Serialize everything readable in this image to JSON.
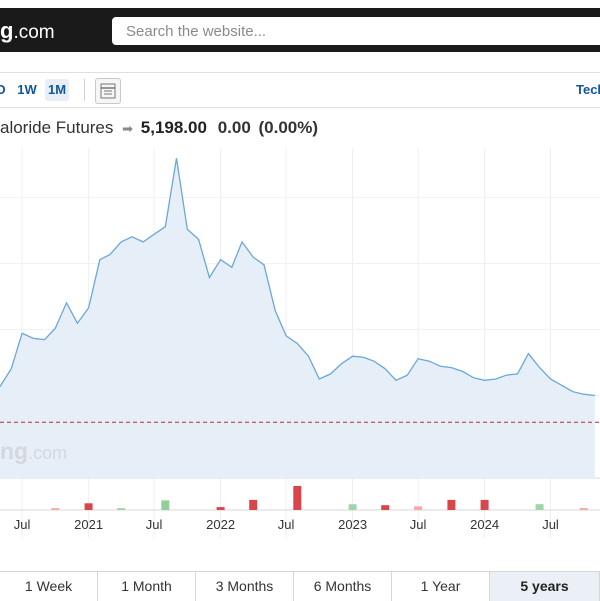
{
  "header": {
    "logo_bold": "g",
    "logo_suffix": ".com",
    "search_placeholder": "Search the website..."
  },
  "toolbar": {
    "timeframes": [
      {
        "label": "D",
        "active": false
      },
      {
        "label": "1W",
        "active": false
      },
      {
        "label": "1M",
        "active": true
      }
    ],
    "chart_type_icon": "candlestick-chart-icon",
    "technical_label": "Tech"
  },
  "quote": {
    "name": "aloride Futures",
    "arrow_icon": "right-arrow-icon",
    "price": "5,198.00",
    "change": "0.00",
    "change_pct": "(0.00%)"
  },
  "watermark": {
    "bold": "ng",
    "suffix": ".com"
  },
  "chart_data": {
    "type": "area",
    "x_axis": {
      "tick_labels": [
        "Jul",
        "2021",
        "Jul",
        "2022",
        "Jul",
        "2023",
        "Jul",
        "2024",
        "Jul"
      ],
      "tick_dates": [
        "2020-07-01",
        "2021-01-01",
        "2021-07-01",
        "2022-01-01",
        "2022-07-01",
        "2023-01-01",
        "2023-07-01",
        "2024-01-01",
        "2024-07-01"
      ],
      "range": [
        "2020-05-01",
        "2024-11-15"
      ]
    },
    "y_axis": {
      "range": [
        3000,
        16000
      ],
      "grid": true
    },
    "series": [
      {
        "color": "#6aa8d8",
        "fill": "#e6eff7",
        "x": [
          "2020-05-01",
          "2020-06-01",
          "2020-07-01",
          "2020-08-01",
          "2020-09-01",
          "2020-10-01",
          "2020-11-01",
          "2020-12-01",
          "2021-01-01",
          "2021-02-01",
          "2021-03-01",
          "2021-04-01",
          "2021-05-01",
          "2021-06-01",
          "2021-07-01",
          "2021-08-01",
          "2021-09-01",
          "2021-10-01",
          "2021-11-01",
          "2021-12-01",
          "2022-01-01",
          "2022-02-01",
          "2022-03-01",
          "2022-04-01",
          "2022-05-01",
          "2022-06-01",
          "2022-07-01",
          "2022-08-01",
          "2022-09-01",
          "2022-10-01",
          "2022-11-01",
          "2022-12-01",
          "2023-01-01",
          "2023-02-01",
          "2023-03-01",
          "2023-04-01",
          "2023-05-01",
          "2023-06-01",
          "2023-07-01",
          "2023-08-01",
          "2023-09-01",
          "2023-10-01",
          "2023-11-01",
          "2023-12-01",
          "2024-01-01",
          "2024-02-01",
          "2024-03-01",
          "2024-04-01",
          "2024-05-01",
          "2024-06-01",
          "2024-07-01",
          "2024-08-01",
          "2024-09-01",
          "2024-10-01",
          "2024-11-01"
        ],
        "y": [
          6600,
          7300,
          8700,
          8500,
          8450,
          8900,
          9900,
          9100,
          9700,
          11600,
          11800,
          12300,
          12500,
          12300,
          12600,
          12900,
          15600,
          12800,
          12400,
          10900,
          11600,
          11300,
          12300,
          11700,
          11400,
          9600,
          8600,
          8300,
          7800,
          6900,
          7100,
          7500,
          7800,
          7750,
          7600,
          7300,
          6850,
          7050,
          7700,
          7600,
          7400,
          7350,
          7200,
          6950,
          6850,
          6900,
          7050,
          7100,
          7900,
          7350,
          6900,
          6650,
          6400,
          6300,
          6250
        ]
      }
    ],
    "reference_line": {
      "value": 5198,
      "style": "dashed",
      "color": "#c62828"
    },
    "volume": {
      "label_dates": [
        "2020-10-01",
        "2021-01-01",
        "2021-04-01",
        "2021-08-01",
        "2022-01-01",
        "2022-04-01",
        "2022-08-01",
        "2023-01-01",
        "2023-04-01",
        "2023-07-01",
        "2023-10-01",
        "2024-01-01",
        "2024-06-01",
        "2024-10-01"
      ],
      "values": [
        0.08,
        0.28,
        0.08,
        0.4,
        0.12,
        0.42,
        1.0,
        0.24,
        0.2,
        0.15,
        0.42,
        0.42,
        0.24,
        0.08
      ],
      "colors": [
        "#f4a8a8",
        "#d9464a",
        "#9fd5a8",
        "#8fd09a",
        "#d9464a",
        "#d9464a",
        "#d9464a",
        "#9fd5a8",
        "#d9464a",
        "#f4a8a8",
        "#d9464a",
        "#d9464a",
        "#9fd5a8",
        "#f4a8a8"
      ]
    }
  },
  "range_selector": {
    "buttons": [
      {
        "label": "1 Week",
        "active": false
      },
      {
        "label": "1 Month",
        "active": false
      },
      {
        "label": "3 Months",
        "active": false
      },
      {
        "label": "6 Months",
        "active": false
      },
      {
        "label": "1 Year",
        "active": false
      },
      {
        "label": "5 years",
        "active": true
      }
    ]
  }
}
